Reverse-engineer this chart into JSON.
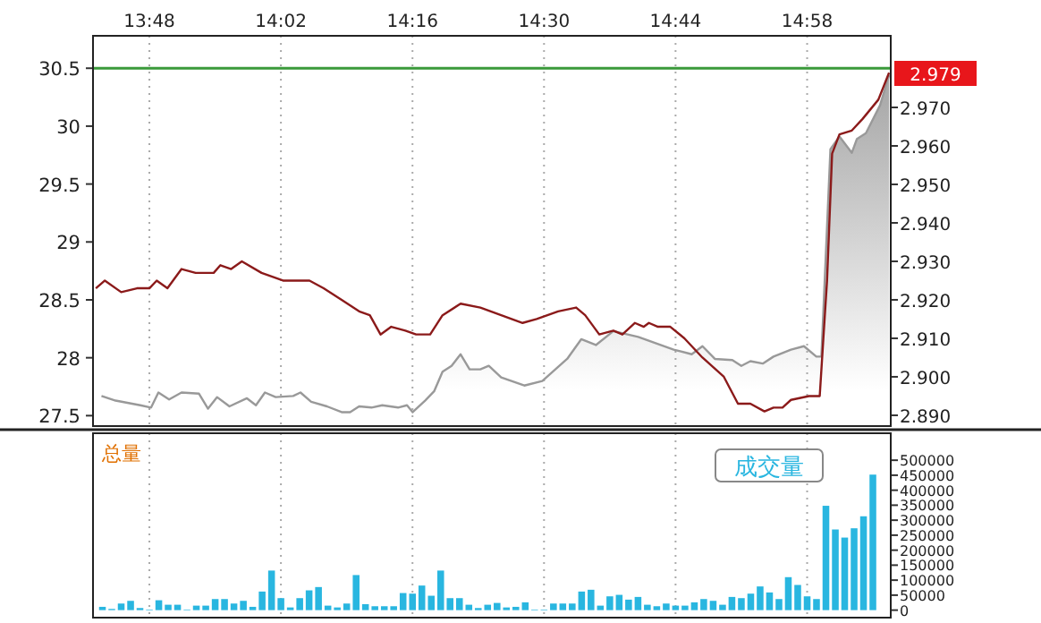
{
  "chart_data": [
    {
      "type": "line",
      "xlim": [
        13.7,
        15.115
      ],
      "ylim": [
        27.41,
        30.78
      ],
      "y2lim": [
        2.8872,
        2.9886
      ],
      "xticks": [
        {
          "value": 13.8,
          "label": "13:48"
        },
        {
          "value": 14.0333,
          "label": "14:02"
        },
        {
          "value": 14.2667,
          "label": "14:16"
        },
        {
          "value": 14.5,
          "label": "14:30"
        },
        {
          "value": 14.7333,
          "label": "14:44"
        },
        {
          "value": 14.9667,
          "label": "14:58"
        }
      ],
      "yticks": [
        27.5,
        28,
        28.5,
        29,
        29.5,
        30,
        30.5
      ],
      "y2ticks": [
        {
          "value": 2.89,
          "label": "2.890"
        },
        {
          "value": 2.9,
          "label": "2.900"
        },
        {
          "value": 2.91,
          "label": "2.910"
        },
        {
          "value": 2.92,
          "label": "2.920"
        },
        {
          "value": 2.93,
          "label": "2.930"
        },
        {
          "value": 2.94,
          "label": "2.940"
        },
        {
          "value": 2.95,
          "label": "2.950"
        },
        {
          "value": 2.96,
          "label": "2.960"
        },
        {
          "value": 2.97,
          "label": "2.970"
        }
      ],
      "grid": "x",
      "ref_lines": [
        {
          "axis": "y",
          "value": 30.5,
          "color": "#3a9a3a"
        }
      ],
      "annotations": [
        "2.979"
      ],
      "series": [
        {
          "type": "area",
          "color": "#999999",
          "x": [
            13.715,
            13.74,
            13.784,
            13.803,
            13.816,
            13.835,
            13.857,
            13.888,
            13.904,
            13.92,
            13.942,
            13.973,
            13.989,
            14.005,
            14.024,
            14.055,
            14.068,
            14.087,
            14.115,
            14.141,
            14.156,
            14.172,
            14.194,
            14.213,
            14.241,
            14.257,
            14.267,
            14.289,
            14.305,
            14.32,
            14.336,
            14.352,
            14.368,
            14.387,
            14.402,
            14.424,
            14.465,
            14.497,
            14.541,
            14.566,
            14.592,
            14.623,
            14.667,
            14.73,
            14.762,
            14.781,
            14.803,
            14.834,
            14.85,
            14.866,
            14.888,
            14.907,
            14.938,
            14.961,
            14.983,
            14.992,
            15.008,
            15.024,
            15.046,
            15.055,
            15.071,
            15.096,
            15.112
          ],
          "values": [
            27.67,
            27.63,
            27.59,
            27.57,
            27.7,
            27.64,
            27.7,
            27.69,
            27.56,
            27.66,
            27.58,
            27.65,
            27.59,
            27.7,
            27.66,
            27.67,
            27.7,
            27.62,
            27.58,
            27.53,
            27.53,
            27.58,
            27.57,
            27.59,
            27.57,
            27.59,
            27.53,
            27.63,
            27.71,
            27.88,
            27.93,
            28.03,
            27.9,
            27.9,
            27.93,
            27.83,
            27.76,
            27.8,
            27.99,
            28.16,
            28.11,
            28.23,
            28.18,
            28.07,
            28.03,
            28.1,
            27.99,
            27.98,
            27.93,
            27.97,
            27.95,
            28.01,
            28.07,
            28.1,
            28.01,
            28.01,
            29.8,
            29.91,
            29.77,
            29.89,
            29.94,
            30.18,
            30.44
          ]
        },
        {
          "axis": "y2",
          "color": "#8b1a1a",
          "x": [
            13.705,
            13.721,
            13.75,
            13.778,
            13.8,
            13.813,
            13.832,
            13.857,
            13.882,
            13.914,
            13.926,
            13.945,
            13.964,
            13.999,
            14.037,
            14.084,
            14.109,
            14.141,
            14.172,
            14.191,
            14.21,
            14.229,
            14.254,
            14.273,
            14.298,
            14.32,
            14.352,
            14.387,
            14.424,
            14.462,
            14.487,
            14.525,
            14.557,
            14.573,
            14.598,
            14.623,
            14.639,
            14.661,
            14.677,
            14.686,
            14.702,
            14.724,
            14.749,
            14.781,
            14.819,
            14.844,
            14.866,
            14.891,
            14.907,
            14.923,
            14.938,
            14.97,
            14.989,
            15.002,
            15.011,
            15.024,
            15.046,
            15.065,
            15.093,
            15.112
          ],
          "values": [
            2.923,
            2.925,
            2.922,
            2.923,
            2.923,
            2.925,
            2.923,
            2.928,
            2.927,
            2.927,
            2.929,
            2.928,
            2.93,
            2.927,
            2.925,
            2.925,
            2.923,
            2.92,
            2.917,
            2.916,
            2.911,
            2.913,
            2.912,
            2.911,
            2.911,
            2.916,
            2.919,
            2.918,
            2.916,
            2.914,
            2.915,
            2.917,
            2.918,
            2.916,
            2.911,
            2.912,
            2.911,
            2.914,
            2.913,
            2.914,
            2.913,
            2.913,
            2.91,
            2.905,
            2.9,
            2.893,
            2.893,
            2.891,
            2.892,
            2.892,
            2.894,
            2.895,
            2.895,
            2.925,
            2.958,
            2.963,
            2.964,
            2.967,
            2.972,
            2.979
          ]
        }
      ]
    },
    {
      "type": "bar",
      "xlim": [
        13.7,
        15.115
      ],
      "y2lim": [
        -25000,
        590000
      ],
      "tick_labels": "y",
      "grid": "x",
      "xticks": [
        {
          "value": 13.8,
          "label": null
        },
        {
          "value": 14.0333,
          "label": null
        },
        {
          "value": 14.2667,
          "label": null
        },
        {
          "value": 14.5,
          "label": null
        },
        {
          "value": 14.7333,
          "label": null
        },
        {
          "value": 14.9667,
          "label": null
        }
      ],
      "y2ticks": [
        0,
        50000,
        100000,
        150000,
        200000,
        250000,
        300000,
        350000,
        400000,
        450000,
        500000
      ],
      "annotations": [
        "总量"
      ],
      "series": [
        {
          "name": "成交量",
          "axis": "y2",
          "color": "#29b6e0",
          "x": [
            13.7167,
            13.7333,
            13.75,
            13.7667,
            13.7833,
            13.8,
            13.8167,
            13.8333,
            13.85,
            13.8667,
            13.8833,
            13.9,
            13.9167,
            13.9333,
            13.95,
            13.9667,
            13.9833,
            14,
            14.0167,
            14.0333,
            14.05,
            14.0667,
            14.0833,
            14.1,
            14.1167,
            14.1333,
            14.15,
            14.1667,
            14.1833,
            14.2,
            14.2167,
            14.2333,
            14.25,
            14.2667,
            14.2833,
            14.3,
            14.3167,
            14.3333,
            14.35,
            14.3667,
            14.3833,
            14.4,
            14.4167,
            14.4333,
            14.45,
            14.4667,
            14.4833,
            14.5,
            14.5167,
            14.5333,
            14.55,
            14.5667,
            14.5833,
            14.6,
            14.6167,
            14.6333,
            14.65,
            14.6667,
            14.6833,
            14.7,
            14.7167,
            14.7333,
            14.75,
            14.7667,
            14.7833,
            14.8,
            14.8167,
            14.8333,
            14.85,
            14.8667,
            14.8833,
            14.9,
            14.9167,
            14.9333,
            14.95,
            14.9667,
            14.9833,
            15,
            15.0167,
            15.0333,
            15.05,
            15.0667,
            15.0833
          ],
          "values": [
            11000,
            4000,
            22000,
            31000,
            7000,
            2000,
            33000,
            18000,
            18000,
            2000,
            15000,
            15000,
            37000,
            37000,
            22000,
            31000,
            11000,
            62000,
            132000,
            40000,
            9000,
            40000,
            66000,
            77000,
            15000,
            9000,
            22000,
            117000,
            20000,
            13000,
            13000,
            13000,
            57000,
            55000,
            82000,
            48000,
            132000,
            40000,
            40000,
            18000,
            7000,
            18000,
            24000,
            9000,
            11000,
            26000,
            2000,
            2000,
            22000,
            22000,
            22000,
            62000,
            68000,
            15000,
            46000,
            51000,
            35000,
            44000,
            18000,
            13000,
            22000,
            15000,
            15000,
            26000,
            37000,
            31000,
            18000,
            44000,
            40000,
            55000,
            79000,
            59000,
            37000,
            110000,
            84000,
            46000,
            37000,
            348000,
            269000,
            242000,
            273000,
            313000,
            452000
          ]
        }
      ]
    }
  ]
}
